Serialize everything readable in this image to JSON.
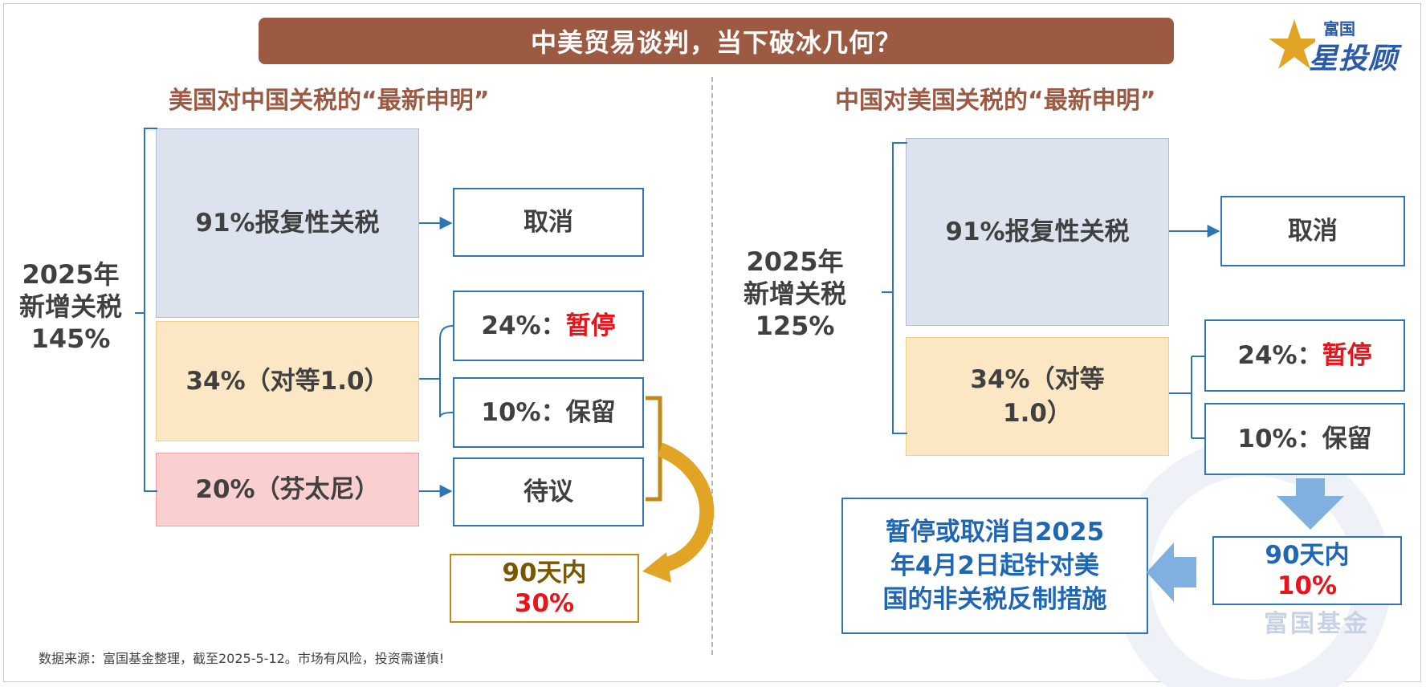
{
  "title": "中美贸易谈判，当下破冰几何？",
  "logo": {
    "small": "富国",
    "main": "星投顾"
  },
  "left": {
    "heading": "美国对中国关税的“最新申明”",
    "total_label": [
      "2025年",
      "新增关税",
      "145%"
    ],
    "boxes": [
      {
        "label": "91%报复性关税",
        "outcome": "取消"
      },
      {
        "label": "34%（对等1.0）",
        "outcomes": [
          {
            "prefix": "24%：",
            "status": "暂停"
          },
          {
            "prefix": "10%：",
            "status": "保留"
          }
        ]
      },
      {
        "label": "20%（芬太尼）",
        "outcome": "待议"
      }
    ],
    "result": {
      "line1": "90天内",
      "line2": "30%"
    }
  },
  "right": {
    "heading": "中国对美国关税的“最新申明”",
    "total_label": [
      "2025年",
      "新增关税",
      "125%"
    ],
    "boxes": [
      {
        "label": "91%报复性关税",
        "outcome": "取消"
      },
      {
        "label_line1": "34%（对等",
        "label_line2": "1.0）",
        "outcomes": [
          {
            "prefix": "24%：",
            "status": "暂停"
          },
          {
            "prefix": "10%：",
            "status": "保留"
          }
        ]
      }
    ],
    "result": {
      "line1": "90天内",
      "line2": "10%"
    },
    "measure": [
      "暂停或取消自2025",
      "年4月2日起针对美",
      "国的非关税反制措施"
    ]
  },
  "footnote": "数据来源：富国基金整理，截至2025-5-12。市场有风险，投资需谨慎!",
  "watermark": "富国基金",
  "colors": {
    "banner": "#9c5a43",
    "heading": "#9c5a43",
    "outline_blue": "#2e75b6",
    "gold": "#c08a17",
    "highlight_red": "#e8141c"
  }
}
